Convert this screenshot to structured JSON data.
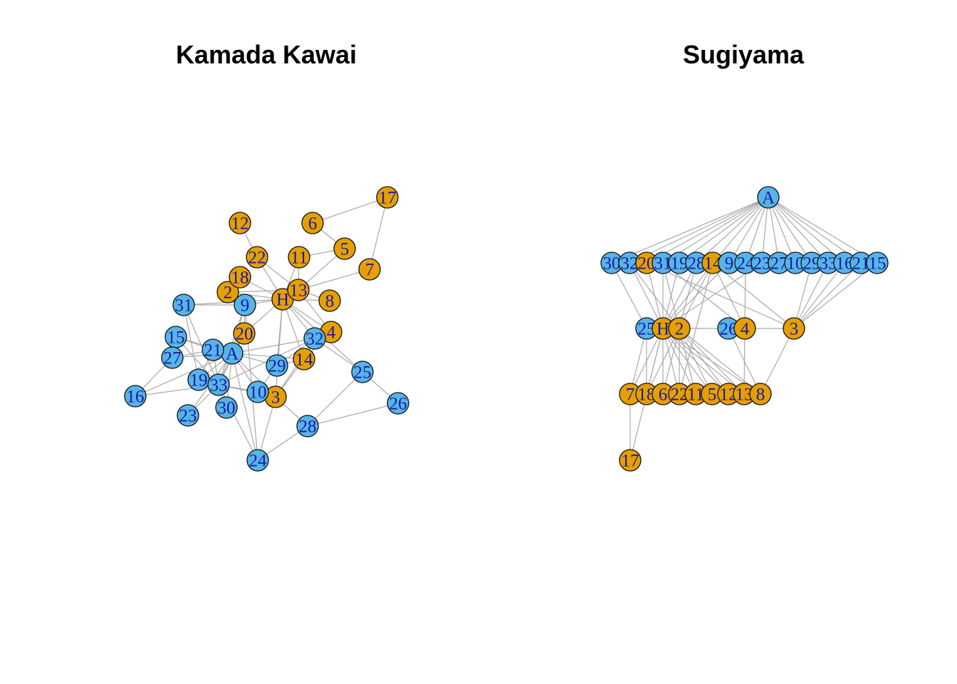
{
  "colors": {
    "blue": "#56b4e9",
    "orange": "#e69f00",
    "edge": "#a9a9a9",
    "label": "#1a1aa0"
  },
  "graphs": [
    {
      "title": "Kamada Kawai",
      "nodes": [
        {
          "id": "A",
          "group": "blue"
        },
        {
          "id": "H",
          "group": "orange"
        },
        {
          "id": "2",
          "group": "orange"
        },
        {
          "id": "3",
          "group": "orange"
        },
        {
          "id": "4",
          "group": "orange"
        },
        {
          "id": "5",
          "group": "orange"
        },
        {
          "id": "6",
          "group": "orange"
        },
        {
          "id": "7",
          "group": "orange"
        },
        {
          "id": "8",
          "group": "orange"
        },
        {
          "id": "9",
          "group": "blue"
        },
        {
          "id": "10",
          "group": "blue"
        },
        {
          "id": "11",
          "group": "orange"
        },
        {
          "id": "12",
          "group": "orange"
        },
        {
          "id": "13",
          "group": "orange"
        },
        {
          "id": "14",
          "group": "orange"
        },
        {
          "id": "15",
          "group": "blue"
        },
        {
          "id": "16",
          "group": "blue"
        },
        {
          "id": "17",
          "group": "orange"
        },
        {
          "id": "18",
          "group": "orange"
        },
        {
          "id": "19",
          "group": "blue"
        },
        {
          "id": "20",
          "group": "orange"
        },
        {
          "id": "21",
          "group": "blue"
        },
        {
          "id": "22",
          "group": "orange"
        },
        {
          "id": "23",
          "group": "blue"
        },
        {
          "id": "24",
          "group": "blue"
        },
        {
          "id": "25",
          "group": "blue"
        },
        {
          "id": "26",
          "group": "blue"
        },
        {
          "id": "27",
          "group": "blue"
        },
        {
          "id": "28",
          "group": "blue"
        },
        {
          "id": "29",
          "group": "blue"
        },
        {
          "id": "30",
          "group": "blue"
        },
        {
          "id": "31",
          "group": "blue"
        },
        {
          "id": "32",
          "group": "blue"
        },
        {
          "id": "33",
          "group": "blue"
        }
      ]
    },
    {
      "title": "Sugiyama",
      "nodes": [
        {
          "id": "A",
          "group": "blue"
        },
        {
          "id": "30",
          "group": "blue"
        },
        {
          "id": "32",
          "group": "blue"
        },
        {
          "id": "20",
          "group": "orange"
        },
        {
          "id": "31",
          "group": "blue"
        },
        {
          "id": "19",
          "group": "blue"
        },
        {
          "id": "28",
          "group": "blue"
        },
        {
          "id": "14",
          "group": "orange"
        },
        {
          "id": "9",
          "group": "blue"
        },
        {
          "id": "24",
          "group": "blue"
        },
        {
          "id": "23",
          "group": "blue"
        },
        {
          "id": "27",
          "group": "blue"
        },
        {
          "id": "10",
          "group": "blue"
        },
        {
          "id": "29",
          "group": "blue"
        },
        {
          "id": "33",
          "group": "blue"
        },
        {
          "id": "16",
          "group": "blue"
        },
        {
          "id": "21",
          "group": "blue"
        },
        {
          "id": "15",
          "group": "blue"
        },
        {
          "id": "25",
          "group": "blue"
        },
        {
          "id": "H",
          "group": "orange"
        },
        {
          "id": "2",
          "group": "orange"
        },
        {
          "id": "26",
          "group": "blue"
        },
        {
          "id": "4",
          "group": "orange"
        },
        {
          "id": "3",
          "group": "orange"
        },
        {
          "id": "7",
          "group": "orange"
        },
        {
          "id": "18",
          "group": "orange"
        },
        {
          "id": "6",
          "group": "orange"
        },
        {
          "id": "22",
          "group": "orange"
        },
        {
          "id": "11",
          "group": "orange"
        },
        {
          "id": "5",
          "group": "orange"
        },
        {
          "id": "12",
          "group": "orange"
        },
        {
          "id": "13",
          "group": "orange"
        },
        {
          "id": "8",
          "group": "orange"
        },
        {
          "id": "17",
          "group": "orange"
        }
      ]
    }
  ]
}
